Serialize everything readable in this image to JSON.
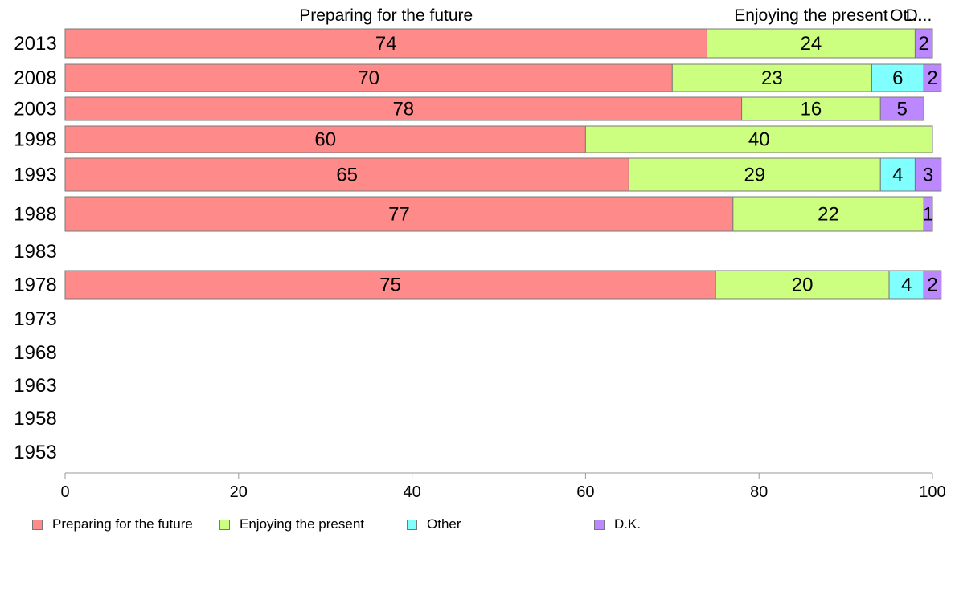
{
  "chart_data": {
    "type": "bar",
    "orientation": "horizontal",
    "stacked": true,
    "title": "",
    "xlabel": "",
    "ylabel": "",
    "xlim": [
      0,
      100
    ],
    "x_ticks": [
      "0",
      "20",
      "40",
      "60",
      "80",
      "100"
    ],
    "category_headers": [
      "Preparing for the future",
      "Enjoying the present",
      "Ot...",
      "D..."
    ],
    "categories": [
      "2013",
      "2008",
      "2003",
      "1998",
      "1993",
      "1988",
      "1983",
      "1978",
      "1973",
      "1968",
      "1963",
      "1958",
      "1953"
    ],
    "series": [
      {
        "name": "Preparing for the future",
        "color": "#ff8a8a",
        "values": [
          74,
          70,
          78,
          60,
          65,
          77,
          null,
          75,
          null,
          null,
          null,
          null,
          null
        ]
      },
      {
        "name": "Enjoying the present",
        "color": "#ccff80",
        "values": [
          24,
          23,
          16,
          40,
          29,
          22,
          null,
          20,
          null,
          null,
          null,
          null,
          null
        ]
      },
      {
        "name": "Other",
        "color": "#80ffff",
        "values": [
          0,
          6,
          0,
          0,
          4,
          0,
          null,
          4,
          null,
          null,
          null,
          null,
          null
        ]
      },
      {
        "name": "D.K.",
        "color": "#bb88ff",
        "values": [
          2,
          2,
          5,
          0,
          3,
          1,
          null,
          2,
          null,
          null,
          null,
          null,
          null
        ]
      }
    ],
    "legend_position": "bottom",
    "grid": false
  }
}
